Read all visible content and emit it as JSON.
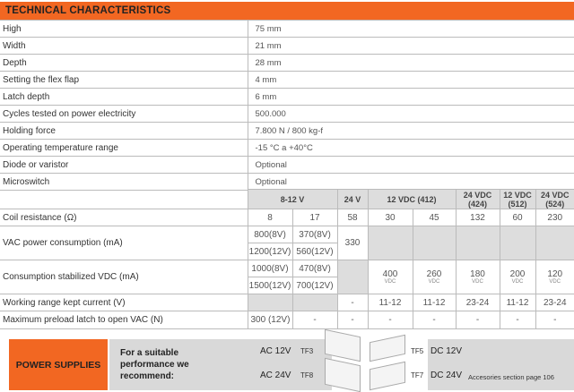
{
  "header": {
    "title": "TECHNICAL CHARACTERISTICS"
  },
  "specs": [
    {
      "label": "High",
      "value": "75 mm"
    },
    {
      "label": "Width",
      "value": "21 mm"
    },
    {
      "label": "Depth",
      "value": "28 mm"
    },
    {
      "label": "Setting the flex flap",
      "value": "4 mm"
    },
    {
      "label": "Latch depth",
      "value": "6 mm"
    },
    {
      "label": "Cycles tested on power electricity",
      "value": "500.000"
    },
    {
      "label": "Holding force",
      "value": "7.800 N / 800 kg-f"
    },
    {
      "label": "Operating temperature range",
      "value": "-15 °C a +40°C"
    },
    {
      "label": "Diode or varistor",
      "value": "Optional"
    },
    {
      "label": "Microswitch",
      "value": "Optional"
    }
  ],
  "voltage_table": {
    "headers": [
      "8-12 V",
      "24 V",
      "12 VDC (412)",
      "24 VDC (424)",
      "12 VDC (512)",
      "24 VDC (524)"
    ],
    "coil": {
      "label": "Coil resistance (Ω)",
      "values": [
        "8",
        "17",
        "58",
        "30",
        "45",
        "132",
        "60",
        "230"
      ]
    },
    "vac": {
      "label": "VAC power consumption  (mA)",
      "a1": "800(8V)",
      "b1": "370(8V)",
      "a2": "1200(12V)",
      "b2": "560(12V)",
      "c": "330"
    },
    "vdc": {
      "label": "Consumption stabilized VDC (mA)",
      "a1": "1000(8V)",
      "b1": "470(8V)",
      "a2": "1500(12V)",
      "b2": "700(12V)",
      "values": [
        "400",
        "260",
        "180",
        "200",
        "120"
      ],
      "unit": "VDC"
    },
    "working": {
      "label": "Working range kept current (V)",
      "values": [
        "-",
        "11-12",
        "11-12",
        "23-24",
        "11-12",
        "23-24"
      ]
    },
    "preload": {
      "label": "Maximum preload latch to open VAC (N)",
      "values": [
        "300 (12V)",
        "-",
        "-",
        "-",
        "-",
        "-",
        "-",
        "-"
      ]
    }
  },
  "power": {
    "title": "POWER SUPPLIES",
    "recommend": "For a suitable performance we recommend:",
    "ac12": "AC 12V",
    "ac24": "AC 24V",
    "tf3": "TF3",
    "tf8": "TF8",
    "tf5": "TF5",
    "tf7": "TF7",
    "dc12": "DC 12V",
    "dc24": "DC 24V",
    "note": "Accesories section page 106"
  },
  "colors": {
    "accent": "#f26722",
    "grey": "#d9d9d9"
  }
}
